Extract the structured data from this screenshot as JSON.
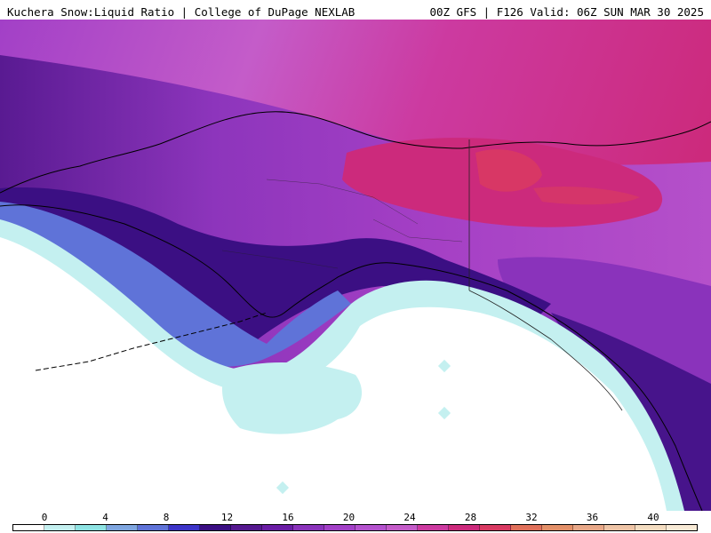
{
  "header": {
    "title": "Kuchera Snow:Liquid Ratio | College of DuPage NEXLAB",
    "run_info": "00Z GFS | F126 Valid: 06Z SUN MAR 30 2025"
  },
  "colorbar": {
    "tick_labels": [
      "0",
      "4",
      "8",
      "12",
      "16",
      "20",
      "24",
      "28",
      "32",
      "36",
      "40"
    ],
    "colors": [
      "#ffffff",
      "#c4f0f0",
      "#8ee3e3",
      "#7fa6e0",
      "#5f73d8",
      "#3d34c8",
      "#3b0f83",
      "#55188f",
      "#6a1da5",
      "#8a33bb",
      "#a240c7",
      "#b452ce",
      "#c45cc9",
      "#cc3aa0",
      "#cc2a7c",
      "#d93a62",
      "#e0705a",
      "#e39068",
      "#e8a888",
      "#eec4a6",
      "#f3dcc0",
      "#f8ead6"
    ]
  },
  "map": {
    "region": "Alaska and northwest Canada",
    "colors": {
      "ocean": "#ffffff",
      "low_ratio": "#c4f0f0",
      "blue": "#5f73d8",
      "deep_purple": "#3b0f83",
      "purple": "#8a33bb",
      "violet": "#b452ce",
      "magenta": "#cc2a7c",
      "pink_max": "#d93a62",
      "coastline": "#000000",
      "borders": "#222222"
    }
  }
}
